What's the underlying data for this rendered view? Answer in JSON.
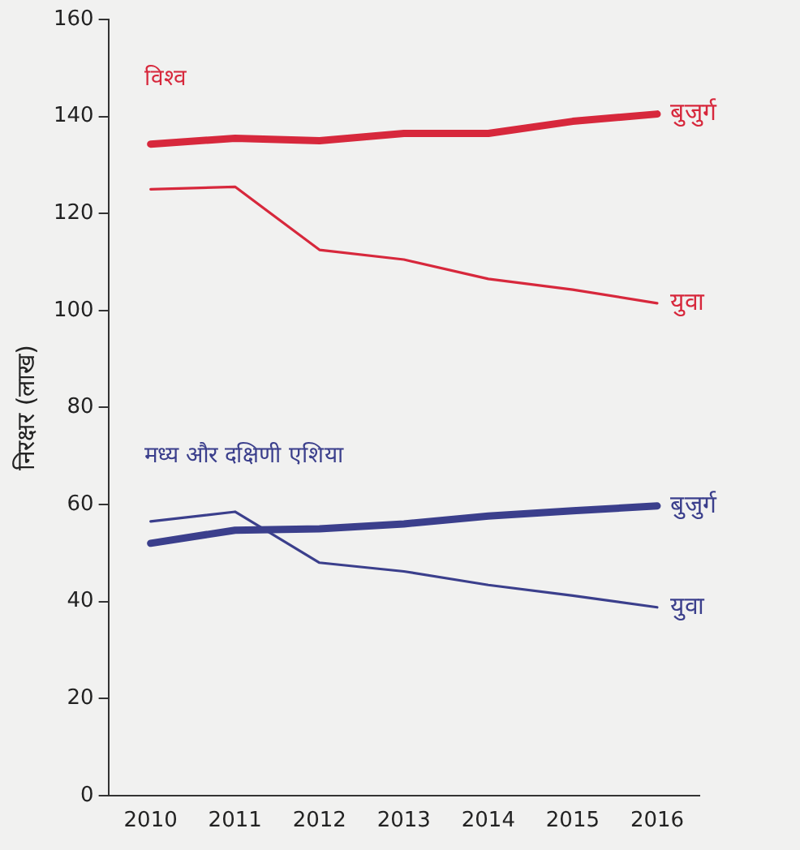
{
  "chart_data": {
    "type": "line",
    "ylabel": "निरक्षर (लाख)",
    "categories": [
      "2010",
      "2011",
      "2012",
      "2013",
      "2014",
      "2015",
      "2016"
    ],
    "series": [
      {
        "name": "बुजुर्ग",
        "color": "#d7283c",
        "values": [
          134.3,
          135.5,
          135,
          136.5,
          136.5,
          139,
          140.5
        ]
      },
      {
        "name": "युवा",
        "color": "#d7283c",
        "values": [
          125,
          125.5,
          112.5,
          110.5,
          106.5,
          104.3,
          101.5
        ]
      },
      {
        "name": "बुजुर्ग",
        "color": "#3b3f8c",
        "values": [
          52,
          54.7,
          55,
          56,
          57.6,
          58.7,
          59.7
        ]
      },
      {
        "name": "युवा",
        "color": "#3b3f8c",
        "values": [
          56.5,
          58.5,
          48,
          46.2,
          43.4,
          41.2,
          38.8
        ]
      }
    ],
    "annotations": [
      "विश्व",
      "मध्य और दक्षिणी एशिया"
    ],
    "ylim": [
      0,
      160
    ],
    "yticks": [
      0,
      20,
      40,
      60,
      80,
      100,
      120,
      140,
      160
    ],
    "grid": false,
    "legend": false,
    "marker": "none",
    "line_style": "solid"
  }
}
